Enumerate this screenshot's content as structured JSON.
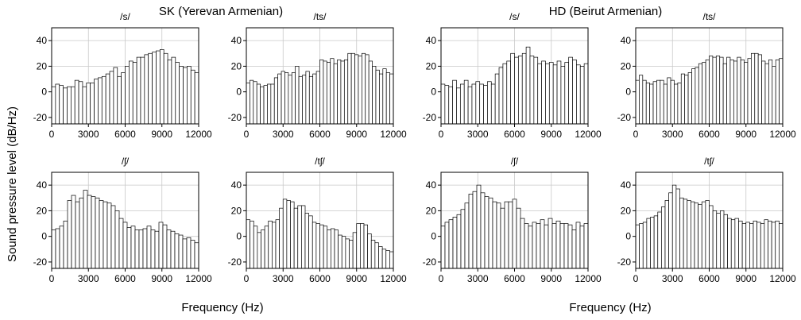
{
  "figure": {
    "group_titles": [
      "SK (Yerevan Armenian)",
      "HD (Beirut Armenian)"
    ],
    "ylabel": "Sound pressure level (dB/Hz)",
    "xlabel": "Frequency (Hz)"
  },
  "chart_data": [
    {
      "type": "bar",
      "speaker": "SK (Yerevan Armenian)",
      "title": "/s/",
      "xlim": [
        0,
        12000
      ],
      "ylim": [
        -25,
        50
      ],
      "xticks": [
        "0",
        "3000",
        "6000",
        "9000",
        "12000"
      ],
      "yticks": [
        "-20",
        "0",
        "20",
        "40"
      ],
      "grid": true,
      "values": [
        4,
        6,
        5,
        3,
        4,
        4,
        9,
        8,
        4,
        7,
        7,
        10,
        11,
        12,
        14,
        16,
        19,
        12,
        15,
        20,
        24,
        23,
        27,
        27,
        29,
        30,
        31,
        32,
        33,
        30,
        25,
        27,
        23,
        20,
        19,
        20,
        17,
        15
      ]
    },
    {
      "type": "bar",
      "speaker": "SK (Yerevan Armenian)",
      "title": "/ts/",
      "xlim": [
        0,
        12000
      ],
      "ylim": [
        -25,
        50
      ],
      "xticks": [
        "0",
        "3000",
        "6000",
        "9000",
        "12000"
      ],
      "yticks": [
        "-20",
        "0",
        "20",
        "40"
      ],
      "grid": true,
      "values": [
        7,
        9,
        8,
        6,
        4,
        5,
        6,
        6,
        11,
        14,
        16,
        15,
        13,
        15,
        20,
        12,
        13,
        16,
        12,
        14,
        16,
        25,
        24,
        23,
        26,
        22,
        25,
        24,
        25,
        30,
        30,
        29,
        28,
        30,
        29,
        24,
        20,
        17,
        14,
        18,
        15,
        14
      ]
    },
    {
      "type": "bar",
      "speaker": "HD (Beirut Armenian)",
      "title": "/s/",
      "xlim": [
        0,
        12000
      ],
      "ylim": [
        -25,
        50
      ],
      "xticks": [
        "0",
        "3000",
        "6000",
        "9000",
        "12000"
      ],
      "yticks": [
        "-20",
        "0",
        "20",
        "40"
      ],
      "grid": true,
      "values": [
        6,
        5,
        4,
        9,
        3,
        6,
        9,
        4,
        6,
        8,
        6,
        5,
        8,
        6,
        14,
        19,
        22,
        24,
        30,
        27,
        28,
        30,
        35,
        28,
        27,
        22,
        24,
        22,
        23,
        21,
        24,
        20,
        23,
        27,
        25,
        21,
        20,
        22
      ]
    },
    {
      "type": "bar",
      "speaker": "HD (Beirut Armenian)",
      "title": "/ts/",
      "xlim": [
        0,
        12000
      ],
      "ylim": [
        -25,
        50
      ],
      "xticks": [
        "0",
        "3000",
        "6000",
        "9000",
        "12000"
      ],
      "yticks": [
        "-20",
        "0",
        "20",
        "40"
      ],
      "grid": true,
      "values": [
        9,
        13,
        9,
        7,
        6,
        8,
        9,
        9,
        6,
        11,
        9,
        6,
        7,
        14,
        13,
        15,
        18,
        19,
        22,
        23,
        25,
        28,
        27,
        28,
        27,
        22,
        27,
        25,
        24,
        27,
        25,
        23,
        26,
        30,
        30,
        29,
        24,
        22,
        25,
        20,
        25,
        26
      ]
    },
    {
      "type": "bar",
      "speaker": "SK (Yerevan Armenian)",
      "title": "/ʃ/",
      "xlim": [
        0,
        12000
      ],
      "ylim": [
        -25,
        50
      ],
      "xticks": [
        "0",
        "3000",
        "6000",
        "9000",
        "12000"
      ],
      "yticks": [
        "-20",
        "0",
        "20",
        "40"
      ],
      "grid": true,
      "values": [
        5,
        6,
        8,
        12,
        28,
        32,
        27,
        30,
        36,
        32,
        31,
        30,
        28,
        27,
        26,
        24,
        20,
        14,
        11,
        7,
        8,
        5,
        5,
        6,
        8,
        5,
        4,
        11,
        9,
        5,
        4,
        2,
        1,
        -2,
        -1,
        -3,
        -5
      ]
    },
    {
      "type": "bar",
      "speaker": "SK (Yerevan Armenian)",
      "title": "/tʃ/",
      "xlim": [
        0,
        12000
      ],
      "ylim": [
        -25,
        50
      ],
      "xticks": [
        "0",
        "3000",
        "6000",
        "9000",
        "12000"
      ],
      "yticks": [
        "-20",
        "0",
        "20",
        "40"
      ],
      "grid": true,
      "values": [
        13,
        12,
        8,
        3,
        5,
        8,
        12,
        11,
        13,
        22,
        29,
        28,
        27,
        22,
        24,
        24,
        18,
        16,
        11,
        10,
        9,
        8,
        5,
        6,
        5,
        1,
        0,
        -2,
        -3,
        3,
        10,
        10,
        9,
        2,
        -3,
        -5,
        -8,
        -10,
        -11,
        -12
      ]
    },
    {
      "type": "bar",
      "speaker": "HD (Beirut Armenian)",
      "title": "/ʃ/",
      "xlim": [
        0,
        12000
      ],
      "ylim": [
        -25,
        50
      ],
      "xticks": [
        "0",
        "3000",
        "6000",
        "9000",
        "12000"
      ],
      "yticks": [
        "-20",
        "0",
        "20",
        "40"
      ],
      "grid": true,
      "values": [
        8,
        11,
        13,
        15,
        17,
        21,
        26,
        33,
        35,
        40,
        34,
        31,
        30,
        27,
        26,
        22,
        27,
        27,
        29,
        22,
        14,
        10,
        8,
        11,
        10,
        13,
        9,
        14,
        10,
        12,
        10,
        10,
        9,
        5,
        11,
        8,
        10
      ]
    },
    {
      "type": "bar",
      "speaker": "HD (Beirut Armenian)",
      "title": "/tʃ/",
      "xlim": [
        0,
        12000
      ],
      "ylim": [
        -25,
        50
      ],
      "xticks": [
        "0",
        "3000",
        "6000",
        "9000",
        "12000"
      ],
      "yticks": [
        "-20",
        "0",
        "20",
        "40"
      ],
      "grid": true,
      "values": [
        9,
        10,
        11,
        14,
        15,
        16,
        19,
        23,
        28,
        34,
        40,
        37,
        30,
        29,
        28,
        27,
        26,
        25,
        27,
        28,
        24,
        20,
        18,
        20,
        17,
        14,
        13,
        14,
        12,
        10,
        11,
        10,
        12,
        11,
        10,
        13,
        12,
        11,
        12,
        10
      ]
    }
  ]
}
